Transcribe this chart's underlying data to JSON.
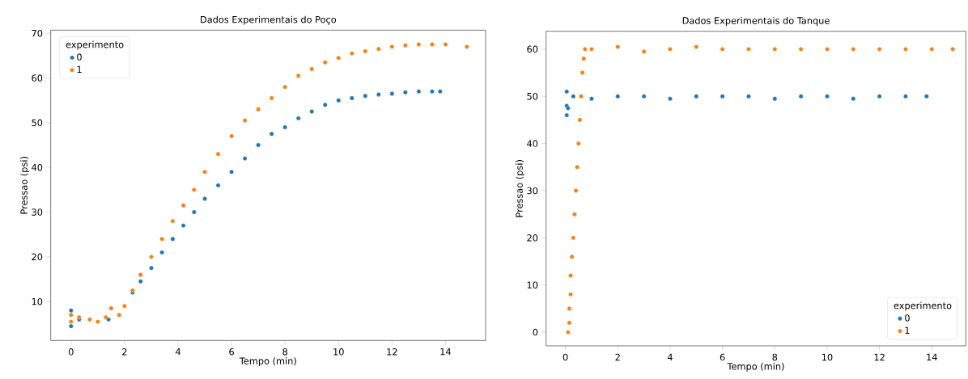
{
  "chart_data": [
    {
      "type": "scatter",
      "title": "Dados Experimentais do Poço",
      "xlabel": "Tempo (min)",
      "ylabel": "Pressao (psi)",
      "legend_title": "experimento",
      "legend": "top left",
      "grid": false,
      "xlim": [
        -0.76,
        15.5
      ],
      "ylim": [
        1.3,
        70.7
      ],
      "xticks": [
        0,
        2,
        4,
        6,
        8,
        10,
        12,
        14
      ],
      "yticks": [
        10,
        20,
        30,
        40,
        50,
        60,
        70
      ],
      "series": [
        {
          "name": "0",
          "color": "#1f77b4",
          "x": [
            0,
            0,
            0.3,
            0.7,
            1.0,
            1.4,
            1.8,
            2.0,
            2.3,
            2.6,
            3.0,
            3.4,
            3.8,
            4.2,
            4.6,
            5.0,
            5.5,
            6.0,
            6.5,
            7.0,
            7.5,
            8.0,
            8.5,
            9.0,
            9.5,
            10.0,
            10.5,
            11.0,
            11.5,
            12.0,
            12.5,
            13.0,
            13.5,
            13.8
          ],
          "values": [
            8,
            4.5,
            6,
            null,
            null,
            6,
            null,
            null,
            12,
            14.5,
            17.5,
            21,
            24,
            27,
            30,
            33,
            36,
            39,
            42,
            45,
            47.5,
            49,
            51,
            52.5,
            54,
            55,
            55.5,
            56,
            56.3,
            56.5,
            56.8,
            57,
            57,
            57
          ]
        },
        {
          "name": "1",
          "color": "#ff7f0e",
          "x": [
            0,
            0,
            0.3,
            0.7,
            1.0,
            1.3,
            1.5,
            1.8,
            2.0,
            2.3,
            2.6,
            3.0,
            3.4,
            3.8,
            4.2,
            4.6,
            5.0,
            5.5,
            6.0,
            6.5,
            7.0,
            7.5,
            8.0,
            8.5,
            9.0,
            9.5,
            10.0,
            10.5,
            11.0,
            11.5,
            12.0,
            12.5,
            13.0,
            13.5,
            14.0,
            14.8
          ],
          "values": [
            7,
            5.5,
            6.5,
            6,
            5.5,
            6.5,
            8.5,
            7,
            9,
            12.5,
            16,
            20,
            24,
            28,
            31.5,
            35,
            39,
            43,
            47,
            50.5,
            53,
            55.5,
            58,
            60.5,
            62,
            63.5,
            64.5,
            65.5,
            66,
            66.5,
            67,
            67.3,
            67.5,
            67.5,
            67.5,
            67
          ]
        }
      ]
    },
    {
      "type": "scatter",
      "title": "Dados Experimentais do Tanque",
      "xlabel": "Tempo (min)",
      "ylabel": "Pressao (psi)",
      "legend_title": "experimento",
      "legend": "bottom right",
      "grid": false,
      "xlim": [
        -0.74,
        15.3
      ],
      "ylim": [
        -2.9,
        63.8
      ],
      "xticks": [
        0,
        2,
        4,
        6,
        8,
        10,
        12,
        14
      ],
      "yticks": [
        0,
        10,
        20,
        30,
        40,
        50,
        60
      ],
      "series": [
        {
          "name": "0",
          "color": "#1f77b4",
          "x": [
            0.05,
            0.05,
            0.05,
            0.1,
            0.3,
            1,
            2,
            3,
            4,
            5,
            6,
            7,
            8,
            9,
            10,
            11,
            12,
            13,
            13.8
          ],
          "values": [
            46,
            48,
            51,
            47.5,
            50,
            49.5,
            50,
            50,
            49.5,
            50,
            50,
            50,
            49.5,
            50,
            50,
            49.5,
            50,
            50,
            50
          ]
        },
        {
          "name": "1",
          "color": "#ff7f0e",
          "x": [
            0.1,
            0.15,
            0.15,
            0.2,
            0.2,
            0.25,
            0.3,
            0.35,
            0.4,
            0.45,
            0.5,
            0.55,
            0.6,
            0.65,
            0.7,
            0.75,
            1,
            2,
            3,
            4,
            5,
            6,
            7,
            8,
            9,
            10,
            11,
            12,
            13,
            14,
            14.8
          ],
          "values": [
            0,
            2,
            5,
            8,
            12,
            16,
            20,
            25,
            30,
            35,
            40,
            45,
            50,
            55,
            58,
            60,
            60,
            60.5,
            59.5,
            60,
            60.5,
            60,
            60,
            60,
            60,
            60,
            60,
            60,
            60,
            60,
            60
          ]
        }
      ]
    }
  ]
}
